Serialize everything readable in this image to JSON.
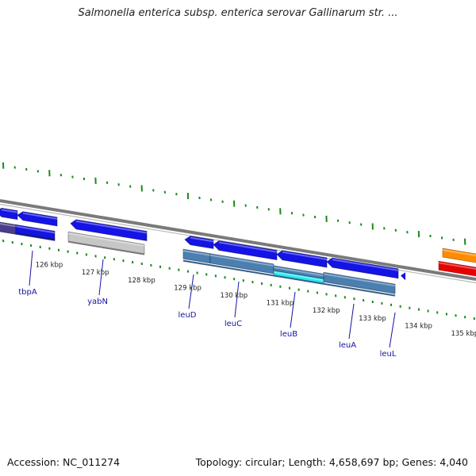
{
  "title": "Salmonella enterica subsp. enterica serovar Gallinarum str. ...",
  "footer": {
    "accession": "Accession: NC_011274",
    "topology": "Topology: circular; Length: 4,658,697 bp; Genes: 4,040"
  },
  "colors": {
    "background": "#ffffff",
    "backbone": "#7a7a7a",
    "tick": "#1a8a1a",
    "gene_label": "#1414a0",
    "cds_blue": "#1414e6",
    "cds_steel": "#4a7fb0",
    "cds_gray": "#c6c6c6",
    "cds_cyan": "#28e6f0",
    "cds_orange": "#ff8c00",
    "cds_red": "#e60000",
    "cds_purple": "#4b3c8c"
  },
  "ruler": {
    "unit": "kbp",
    "labels": [
      "126 kbp",
      "127 kbp",
      "128 kbp",
      "129 kbp",
      "130 kbp",
      "131 kbp",
      "132 kbp",
      "133 kbp",
      "134 kbp",
      "135 kbp"
    ]
  },
  "genes": [
    {
      "name": "tbpA",
      "track": "reverse",
      "color": "cds_blue",
      "start_kbp": 124.7,
      "end_kbp": 125.7
    },
    {
      "name": "yabN",
      "track": "reverse",
      "color": "cds_blue",
      "start_kbp": 126.5,
      "end_kbp": 128.0
    },
    {
      "name": "leuD",
      "track": "reverse",
      "color": "cds_blue",
      "start_kbp": 128.75,
      "end_kbp": 129.35
    },
    {
      "name": "leuC",
      "track": "reverse",
      "color": "cds_blue",
      "start_kbp": 129.35,
      "end_kbp": 130.75
    },
    {
      "name": "leuB",
      "track": "reverse",
      "color": "cds_blue",
      "start_kbp": 130.75,
      "end_kbp": 131.85
    },
    {
      "name": "leuA",
      "track": "reverse",
      "color": "cds_blue",
      "start_kbp": 131.85,
      "end_kbp": 133.4
    },
    {
      "name": "leuL",
      "track": "reverse",
      "color": "cds_blue",
      "start_kbp": 133.45,
      "end_kbp": 133.55
    }
  ],
  "gene_labels": [
    "tbpA",
    "yabN",
    "leuD",
    "leuC",
    "leuB",
    "leuA",
    "leuL"
  ]
}
